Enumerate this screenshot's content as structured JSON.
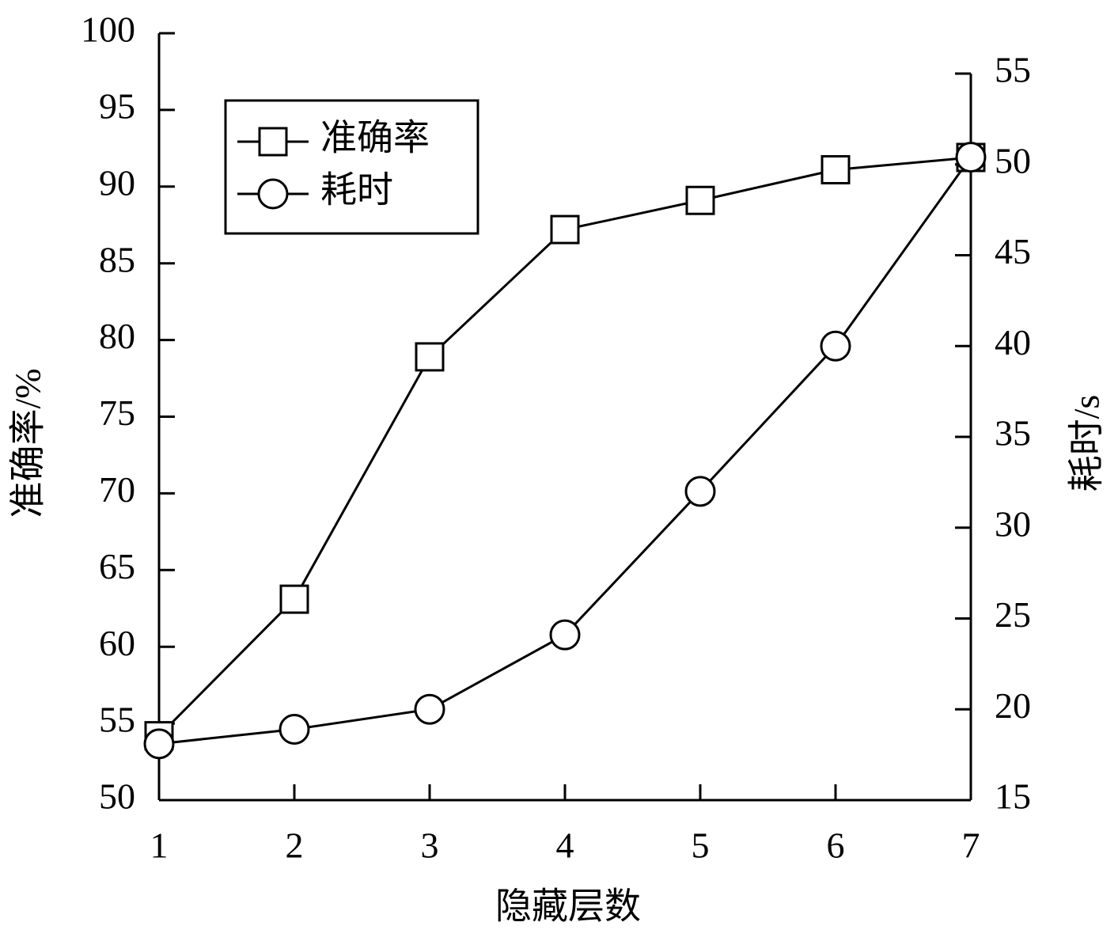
{
  "chart_data": {
    "type": "line",
    "x_label": "隐藏层数",
    "y_label": "准确率/%",
    "y2_label": "耗时/s",
    "x": [
      1,
      2,
      3,
      4,
      5,
      6,
      7
    ],
    "xlim": [
      1,
      7
    ],
    "xticks": [
      1,
      2,
      3,
      4,
      5,
      6,
      7
    ],
    "ylim": [
      50,
      100
    ],
    "yticks": [
      50,
      55,
      60,
      65,
      70,
      75,
      80,
      85,
      90,
      95,
      100
    ],
    "y2lim": [
      15,
      55
    ],
    "y2ticks": [
      15,
      20,
      25,
      30,
      35,
      40,
      45,
      50,
      55
    ],
    "legend": "upper left",
    "series": [
      {
        "name": "准确率",
        "color": "#000000",
        "marker": "square",
        "values": [
          54.2,
          63.1,
          78.9,
          87.2,
          89.1,
          91.1,
          91.9
        ]
      },
      {
        "name": "耗时",
        "color": "#000000",
        "marker": "circle",
        "axis": "y2",
        "values": [
          18.1,
          18.9,
          20.0,
          24.1,
          32.0,
          40.0,
          50.4
        ]
      }
    ]
  }
}
